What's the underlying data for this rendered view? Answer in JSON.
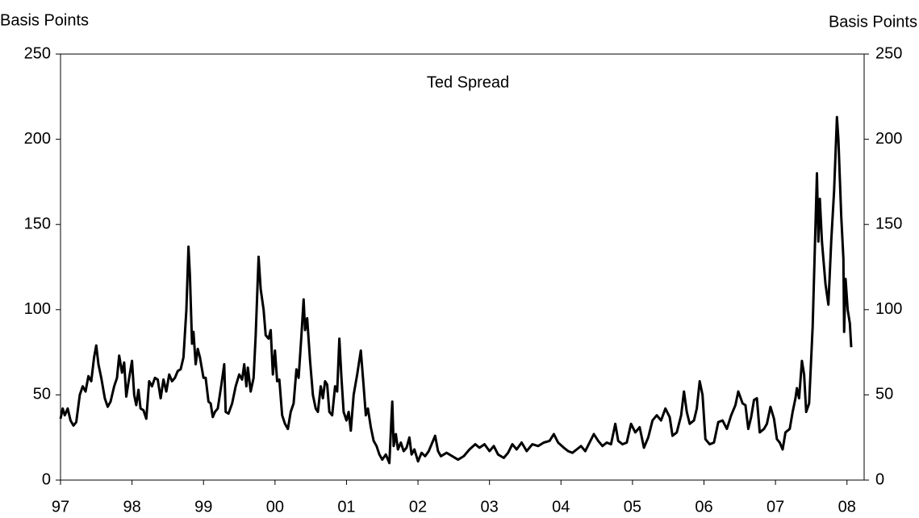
{
  "chart_data": {
    "type": "line",
    "title": "Ted Spread",
    "ylabel": "Basis Points",
    "y2label": "Basis Points",
    "color": "#000000",
    "xlim": [
      1997,
      2008.24
    ],
    "xticks": [
      {
        "value": 1997,
        "label": "97"
      },
      {
        "value": 1998,
        "label": "98"
      },
      {
        "value": 1999,
        "label": "99"
      },
      {
        "value": 2000,
        "label": "00"
      },
      {
        "value": 2001,
        "label": "01"
      },
      {
        "value": 2002,
        "label": "02"
      },
      {
        "value": 2003,
        "label": "03"
      },
      {
        "value": 2004,
        "label": "04"
      },
      {
        "value": 2005,
        "label": "05"
      },
      {
        "value": 2006,
        "label": "06"
      },
      {
        "value": 2007,
        "label": "07"
      },
      {
        "value": 2008,
        "label": "08"
      }
    ],
    "ylim": [
      0,
      250
    ],
    "yticks": [
      0,
      50,
      100,
      150,
      200,
      250
    ],
    "y2lim": [
      0,
      250
    ],
    "y2ticks": [
      0,
      50,
      100,
      150,
      200,
      250
    ],
    "x": [
      1997.0,
      1997.03,
      1997.06,
      1997.1,
      1997.14,
      1997.18,
      1997.22,
      1997.27,
      1997.31,
      1997.35,
      1997.39,
      1997.43,
      1997.47,
      1997.5,
      1997.53,
      1997.57,
      1997.62,
      1997.66,
      1997.7,
      1997.75,
      1997.79,
      1997.82,
      1997.86,
      1997.89,
      1997.92,
      1997.96,
      1998.0,
      1998.03,
      1998.06,
      1998.09,
      1998.12,
      1998.16,
      1998.2,
      1998.24,
      1998.28,
      1998.32,
      1998.36,
      1998.4,
      1998.44,
      1998.48,
      1998.52,
      1998.56,
      1998.6,
      1998.64,
      1998.68,
      1998.72,
      1998.76,
      1998.79,
      1998.81,
      1998.84,
      1998.86,
      1998.89,
      1998.92,
      1998.95,
      1999.0,
      1999.03,
      1999.07,
      1999.1,
      1999.13,
      1999.16,
      1999.2,
      1999.25,
      1999.29,
      1999.31,
      1999.35,
      1999.4,
      1999.45,
      1999.5,
      1999.54,
      1999.57,
      1999.6,
      1999.62,
      1999.66,
      1999.7,
      1999.73,
      1999.77,
      1999.8,
      1999.84,
      1999.87,
      1999.91,
      1999.94,
      1999.97,
      2000.0,
      2000.03,
      2000.06,
      2000.1,
      2000.14,
      2000.18,
      2000.22,
      2000.26,
      2000.3,
      2000.33,
      2000.37,
      2000.4,
      2000.42,
      2000.45,
      2000.49,
      2000.53,
      2000.57,
      2000.6,
      2000.64,
      2000.67,
      2000.7,
      2000.73,
      2000.76,
      2000.8,
      2000.84,
      2000.87,
      2000.9,
      2000.93,
      2000.96,
      2001.0,
      2001.03,
      2001.06,
      2001.1,
      2001.15,
      2001.2,
      2001.24,
      2001.27,
      2001.3,
      2001.34,
      2001.38,
      2001.42,
      2001.46,
      2001.5,
      2001.55,
      2001.6,
      2001.63,
      2001.64,
      2001.66,
      2001.69,
      2001.72,
      2001.76,
      2001.8,
      2001.84,
      2001.88,
      2001.91,
      2001.95,
      2002.0,
      2002.05,
      2002.1,
      2002.15,
      2002.2,
      2002.24,
      2002.28,
      2002.32,
      2002.4,
      2002.48,
      2002.56,
      2002.64,
      2002.72,
      2002.8,
      2002.86,
      2002.93,
      2003.0,
      2003.06,
      2003.12,
      2003.2,
      2003.26,
      2003.32,
      2003.38,
      2003.45,
      2003.52,
      2003.6,
      2003.68,
      2003.76,
      2003.84,
      2003.9,
      2003.96,
      2004.04,
      2004.1,
      2004.16,
      2004.22,
      2004.28,
      2004.34,
      2004.4,
      2004.46,
      2004.52,
      2004.58,
      2004.64,
      2004.7,
      2004.76,
      2004.8,
      2004.86,
      2004.92,
      2004.98,
      2005.04,
      2005.1,
      2005.16,
      2005.22,
      2005.28,
      2005.34,
      2005.4,
      2005.46,
      2005.52,
      2005.56,
      2005.62,
      2005.68,
      2005.72,
      2005.76,
      2005.8,
      2005.86,
      2005.9,
      2005.94,
      2005.98,
      2006.02,
      2006.08,
      2006.14,
      2006.2,
      2006.26,
      2006.32,
      2006.38,
      2006.44,
      2006.48,
      2006.54,
      2006.58,
      2006.62,
      2006.66,
      2006.7,
      2006.74,
      2006.78,
      2006.84,
      2006.88,
      2006.93,
      2006.98,
      2007.02,
      2007.06,
      2007.1,
      2007.14,
      2007.2,
      2007.24,
      2007.28,
      2007.3,
      2007.33,
      2007.37,
      2007.4,
      2007.43,
      2007.47,
      2007.52,
      2007.58,
      2007.6,
      2007.62,
      2007.65,
      2007.7,
      2007.74,
      2007.78,
      2007.82,
      2007.86,
      2007.88,
      2007.92,
      2007.95,
      2007.96,
      2007.98,
      2008.01,
      2008.04,
      2008.06
    ],
    "values": [
      36,
      42,
      38,
      42,
      35,
      32,
      34,
      50,
      55,
      52,
      61,
      58,
      72,
      79,
      68,
      60,
      48,
      43,
      46,
      55,
      60,
      73,
      63,
      69,
      49,
      60,
      70,
      50,
      44,
      53,
      42,
      41,
      36,
      58,
      55,
      60,
      59,
      48,
      59,
      52,
      62,
      58,
      60,
      64,
      65,
      72,
      100,
      137,
      120,
      80,
      87,
      68,
      77,
      72,
      60,
      60,
      46,
      45,
      37,
      40,
      42,
      56,
      68,
      40,
      39,
      45,
      55,
      62,
      59,
      68,
      55,
      66,
      52,
      60,
      85,
      131,
      112,
      100,
      85,
      83,
      88,
      62,
      76,
      58,
      59,
      38,
      33,
      30,
      40,
      45,
      65,
      60,
      85,
      106,
      88,
      95,
      70,
      50,
      42,
      40,
      55,
      48,
      58,
      56,
      40,
      38,
      55,
      52,
      83,
      60,
      40,
      35,
      40,
      29,
      50,
      62,
      76,
      55,
      38,
      42,
      31,
      23,
      20,
      15,
      12,
      15,
      10,
      38,
      46,
      20,
      27,
      18,
      22,
      17,
      19,
      25,
      15,
      18,
      11,
      16,
      14,
      17,
      22,
      26,
      17,
      14,
      16,
      14,
      12,
      14,
      18,
      21,
      19,
      21,
      17,
      20,
      15,
      13,
      16,
      21,
      18,
      22,
      17,
      21,
      20,
      22,
      23,
      27,
      22,
      19,
      17,
      16,
      18,
      20,
      17,
      22,
      27,
      23,
      20,
      22,
      21,
      33,
      23,
      21,
      22,
      33,
      28,
      31,
      19,
      25,
      35,
      38,
      35,
      42,
      37,
      26,
      28,
      38,
      52,
      40,
      33,
      35,
      42,
      58,
      50,
      24,
      21,
      22,
      34,
      35,
      30,
      38,
      44,
      52,
      45,
      44,
      30,
      37,
      47,
      48,
      28,
      30,
      33,
      43,
      36,
      24,
      22,
      18,
      28,
      30,
      40,
      48,
      54,
      48,
      70,
      62,
      40,
      45,
      90,
      180,
      140,
      165,
      140,
      115,
      103,
      140,
      170,
      213,
      200,
      155,
      130,
      87,
      118,
      100,
      92,
      78
    ]
  }
}
